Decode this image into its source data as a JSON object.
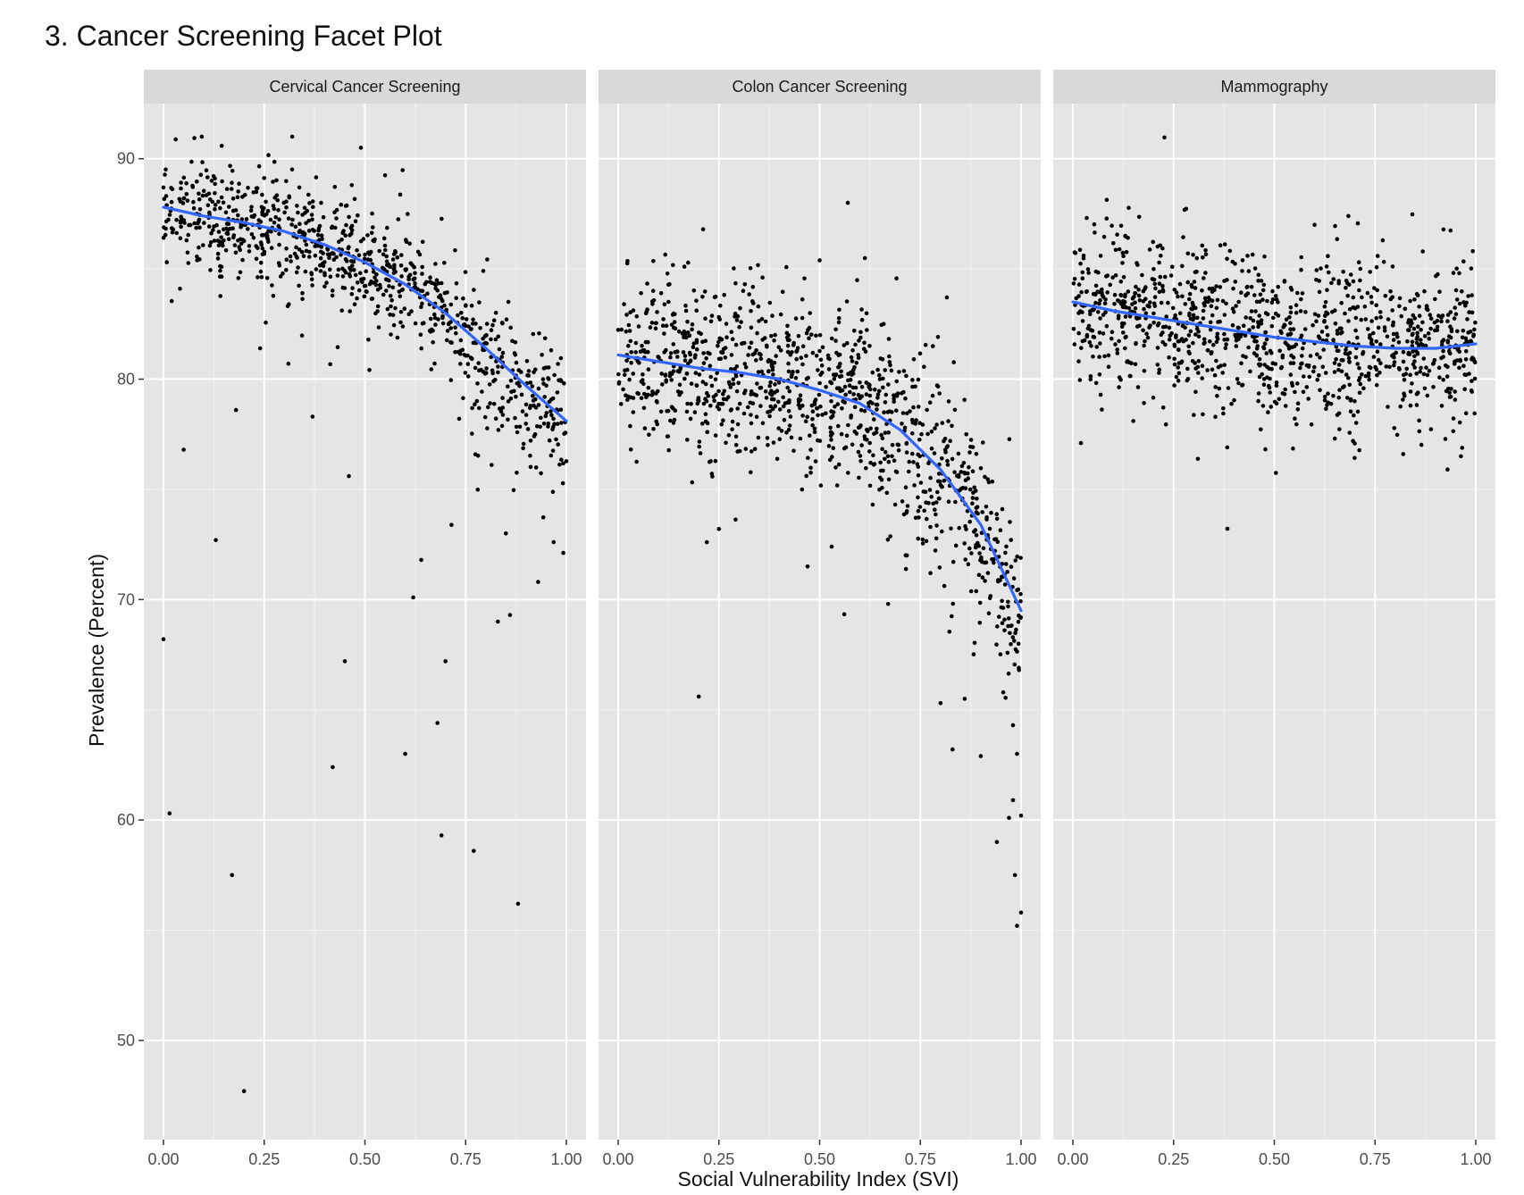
{
  "page": {
    "title": "3. Cancer Screening Facet Plot"
  },
  "chart_data": {
    "type": "scatter",
    "title": "3. Cancer Screening Facet Plot",
    "xlabel": "Social Vulnerability Index (SVI)",
    "ylabel": "Prevalence (Percent)",
    "xlim": [
      0,
      1
    ],
    "ylim": [
      45.5,
      92.5
    ],
    "x_ticks": [
      0,
      0.25,
      0.5,
      0.75,
      1
    ],
    "x_tick_labels": [
      "0.00",
      "0.25",
      "0.50",
      "0.75",
      "1.00"
    ],
    "y_ticks": [
      50,
      60,
      70,
      80,
      90
    ],
    "y_tick_labels": [
      "50",
      "60",
      "70",
      "80",
      "90"
    ],
    "grid": true,
    "theme": {
      "panel_bg": "#e5e5e5",
      "strip_bg": "#d9d9d9",
      "grid_major": "#ffffff",
      "grid_minor": "#f2f2f2",
      "point_color": "#000000",
      "smooth_color": "#3366ff"
    },
    "facets": [
      {
        "label": "Cervical Cancer Screening",
        "smooth": [
          [
            0,
            87.8
          ],
          [
            0.1,
            87.4
          ],
          [
            0.2,
            87.1
          ],
          [
            0.3,
            86.7
          ],
          [
            0.4,
            86.1
          ],
          [
            0.5,
            85.3
          ],
          [
            0.6,
            84.3
          ],
          [
            0.7,
            83.0
          ],
          [
            0.8,
            81.4
          ],
          [
            0.9,
            79.7
          ],
          [
            1,
            78.1
          ]
        ],
        "trend": "0.0 87.8 0.1 87.4 0.2 87.1 0.3 86.7 0.4 86.1 0.5 85.3 0.6 84.3 0.7 83.0 0.8 81.4 0.9 79.7 1.0 78.1",
        "bulk": {
          "n": 900,
          "sd": 1.4
        },
        "outliers": [
          [
            0.0,
            68.2
          ],
          [
            0.015,
            60.3
          ],
          [
            0.05,
            76.8
          ],
          [
            0.13,
            72.7
          ],
          [
            0.17,
            57.5
          ],
          [
            0.2,
            47.7
          ],
          [
            0.42,
            62.4
          ],
          [
            0.45,
            67.2
          ],
          [
            0.46,
            75.6
          ],
          [
            0.6,
            63.0
          ],
          [
            0.62,
            70.1
          ],
          [
            0.68,
            64.4
          ],
          [
            0.69,
            59.3
          ],
          [
            0.7,
            67.2
          ],
          [
            0.77,
            58.6
          ],
          [
            0.83,
            69.0
          ],
          [
            0.86,
            69.3
          ],
          [
            0.88,
            56.2
          ],
          [
            0.49,
            90.5
          ],
          [
            0.18,
            78.6
          ],
          [
            0.37,
            78.3
          ],
          [
            0.64,
            71.8
          ],
          [
            0.24,
            81.4
          ],
          [
            0.31,
            80.7
          ],
          [
            0.85,
            73.0
          ],
          [
            0.93,
            70.8
          ]
        ]
      },
      {
        "label": "Colon Cancer Screening",
        "smooth": [
          [
            0,
            81.1
          ],
          [
            0.1,
            80.8
          ],
          [
            0.2,
            80.5
          ],
          [
            0.3,
            80.3
          ],
          [
            0.4,
            80.0
          ],
          [
            0.5,
            79.5
          ],
          [
            0.6,
            78.9
          ],
          [
            0.7,
            77.7
          ],
          [
            0.8,
            75.9
          ],
          [
            0.9,
            73.4
          ],
          [
            1,
            69.5
          ]
        ],
        "trend": "0.0 81.1 0.1 80.8 0.2 80.5 0.3 80.3 0.4 80.0 0.5 79.5 0.6 78.9 0.7 77.7 0.8 75.9 0.9 73.4 1.0 69.5",
        "bulk": {
          "n": 1100,
          "sd": 2.1
        },
        "outliers": [
          [
            0.2,
            65.6
          ],
          [
            0.57,
            88.0
          ],
          [
            0.25,
            73.2
          ],
          [
            0.22,
            72.6
          ],
          [
            0.53,
            72.4
          ],
          [
            0.47,
            71.5
          ],
          [
            0.67,
            69.8
          ],
          [
            0.8,
            65.3
          ],
          [
            0.83,
            63.2
          ],
          [
            0.86,
            65.5
          ],
          [
            0.9,
            62.9
          ],
          [
            0.94,
            59.0
          ],
          [
            0.97,
            60.1
          ],
          [
            0.98,
            60.9
          ],
          [
            0.985,
            57.5
          ],
          [
            0.99,
            55.2
          ],
          [
            1.0,
            55.8
          ],
          [
            1.0,
            60.2
          ],
          [
            0.99,
            63.0
          ],
          [
            0.995,
            66.8
          ],
          [
            0.98,
            64.3
          ]
        ]
      },
      {
        "label": "Mammography",
        "smooth": [
          [
            0,
            83.5
          ],
          [
            0.1,
            83.1
          ],
          [
            0.2,
            82.8
          ],
          [
            0.3,
            82.5
          ],
          [
            0.4,
            82.2
          ],
          [
            0.5,
            81.9
          ],
          [
            0.6,
            81.7
          ],
          [
            0.7,
            81.5
          ],
          [
            0.8,
            81.4
          ],
          [
            0.9,
            81.4
          ],
          [
            1,
            81.6
          ]
        ],
        "trend": "0.0 83.5 0.1 83.1 0.2 82.8 0.3 82.5 0.4 82.2 0.5 81.9 0.6 81.7 0.7 81.5 0.8 81.4 0.9 81.4 1.0 81.6",
        "bulk": {
          "n": 1100,
          "sd": 1.9
        },
        "outliers": [
          [
            0.02,
            77.1
          ],
          [
            0.93,
            75.9
          ],
          [
            0.82,
            76.6
          ],
          [
            0.15,
            78.1
          ],
          [
            0.65,
            77.3
          ],
          [
            0.13,
            86.5
          ],
          [
            0.6,
            87.0
          ]
        ]
      }
    ]
  }
}
